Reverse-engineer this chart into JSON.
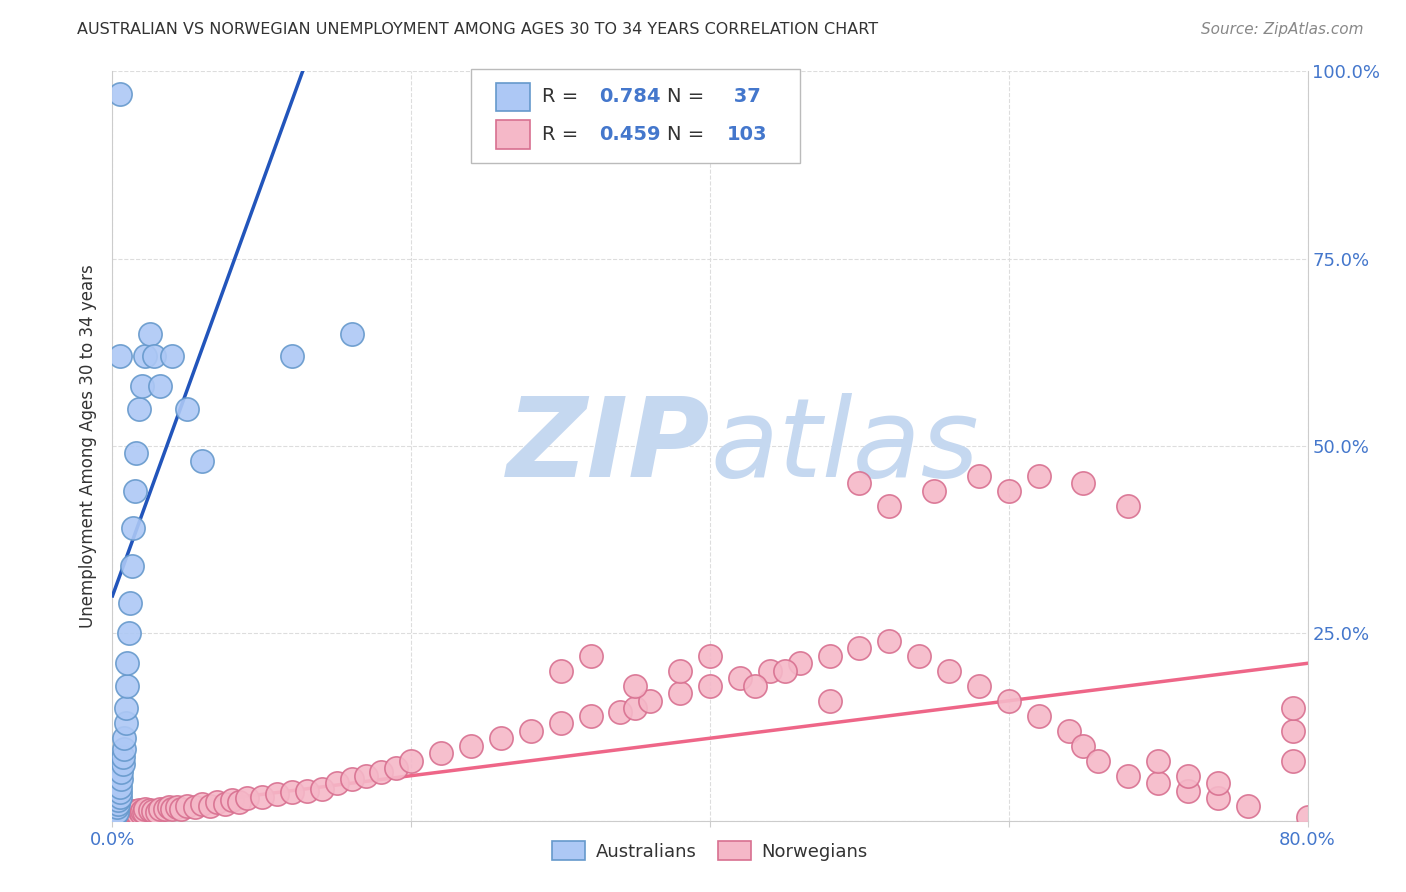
{
  "title": "AUSTRALIAN VS NORWEGIAN UNEMPLOYMENT AMONG AGES 30 TO 34 YEARS CORRELATION CHART",
  "source": "Source: ZipAtlas.com",
  "ylabel": "Unemployment Among Ages 30 to 34 years",
  "xlim": [
    0.0,
    0.8
  ],
  "ylim": [
    0.0,
    1.0
  ],
  "aus_R": 0.784,
  "aus_N": 37,
  "nor_R": 0.459,
  "nor_N": 103,
  "aus_color": "#adc8f5",
  "aus_edge_color": "#6699cc",
  "nor_color": "#f5b8c8",
  "nor_edge_color": "#d87090",
  "aus_line_color": "#2255bb",
  "nor_line_color": "#ee6688",
  "watermark_zip_color": "#c5d8f0",
  "watermark_atlas_color": "#c5d8f0",
  "background_color": "#ffffff",
  "legend_text_color": "#4477cc",
  "tick_color": "#4477cc",
  "grid_color": "#dddddd",
  "title_color": "#333333",
  "source_color": "#888888",
  "ylabel_color": "#333333",
  "aus_scatter_x": [
    0.002,
    0.003,
    0.003,
    0.004,
    0.004,
    0.005,
    0.005,
    0.005,
    0.006,
    0.006,
    0.007,
    0.007,
    0.008,
    0.008,
    0.009,
    0.009,
    0.01,
    0.01,
    0.011,
    0.012,
    0.013,
    0.014,
    0.015,
    0.016,
    0.018,
    0.02,
    0.022,
    0.025,
    0.028,
    0.032,
    0.04,
    0.05,
    0.06,
    0.12,
    0.16,
    0.005,
    0.005
  ],
  "aus_scatter_y": [
    0.008,
    0.012,
    0.018,
    0.022,
    0.028,
    0.032,
    0.038,
    0.045,
    0.055,
    0.065,
    0.075,
    0.085,
    0.095,
    0.11,
    0.13,
    0.15,
    0.18,
    0.21,
    0.25,
    0.29,
    0.34,
    0.39,
    0.44,
    0.49,
    0.55,
    0.58,
    0.62,
    0.65,
    0.62,
    0.58,
    0.62,
    0.55,
    0.48,
    0.62,
    0.65,
    0.62,
    0.97
  ],
  "nor_scatter_x": [
    0.002,
    0.003,
    0.004,
    0.005,
    0.006,
    0.007,
    0.008,
    0.009,
    0.01,
    0.011,
    0.012,
    0.013,
    0.014,
    0.015,
    0.016,
    0.017,
    0.018,
    0.019,
    0.02,
    0.021,
    0.022,
    0.025,
    0.027,
    0.03,
    0.032,
    0.035,
    0.038,
    0.04,
    0.043,
    0.046,
    0.05,
    0.055,
    0.06,
    0.065,
    0.07,
    0.075,
    0.08,
    0.085,
    0.09,
    0.1,
    0.11,
    0.12,
    0.13,
    0.14,
    0.15,
    0.16,
    0.17,
    0.18,
    0.19,
    0.2,
    0.22,
    0.24,
    0.26,
    0.28,
    0.3,
    0.32,
    0.34,
    0.35,
    0.36,
    0.38,
    0.4,
    0.42,
    0.44,
    0.46,
    0.48,
    0.5,
    0.52,
    0.54,
    0.56,
    0.58,
    0.6,
    0.62,
    0.64,
    0.65,
    0.66,
    0.68,
    0.7,
    0.72,
    0.74,
    0.76,
    0.5,
    0.52,
    0.55,
    0.58,
    0.6,
    0.62,
    0.65,
    0.68,
    0.3,
    0.32,
    0.35,
    0.38,
    0.4,
    0.43,
    0.45,
    0.48,
    0.7,
    0.72,
    0.74,
    0.79,
    0.79,
    0.79,
    0.8
  ],
  "nor_scatter_y": [
    0.005,
    0.008,
    0.006,
    0.009,
    0.007,
    0.01,
    0.008,
    0.012,
    0.01,
    0.008,
    0.011,
    0.009,
    0.013,
    0.01,
    0.012,
    0.009,
    0.014,
    0.01,
    0.013,
    0.011,
    0.015,
    0.014,
    0.013,
    0.012,
    0.016,
    0.015,
    0.018,
    0.016,
    0.018,
    0.016,
    0.02,
    0.018,
    0.022,
    0.02,
    0.025,
    0.022,
    0.028,
    0.025,
    0.03,
    0.032,
    0.035,
    0.038,
    0.04,
    0.042,
    0.05,
    0.055,
    0.06,
    0.065,
    0.07,
    0.08,
    0.09,
    0.1,
    0.11,
    0.12,
    0.13,
    0.14,
    0.145,
    0.15,
    0.16,
    0.17,
    0.18,
    0.19,
    0.2,
    0.21,
    0.22,
    0.23,
    0.24,
    0.22,
    0.2,
    0.18,
    0.16,
    0.14,
    0.12,
    0.1,
    0.08,
    0.06,
    0.05,
    0.04,
    0.03,
    0.02,
    0.45,
    0.42,
    0.44,
    0.46,
    0.44,
    0.46,
    0.45,
    0.42,
    0.2,
    0.22,
    0.18,
    0.2,
    0.22,
    0.18,
    0.2,
    0.16,
    0.08,
    0.06,
    0.05,
    0.12,
    0.15,
    0.08,
    0.005
  ]
}
